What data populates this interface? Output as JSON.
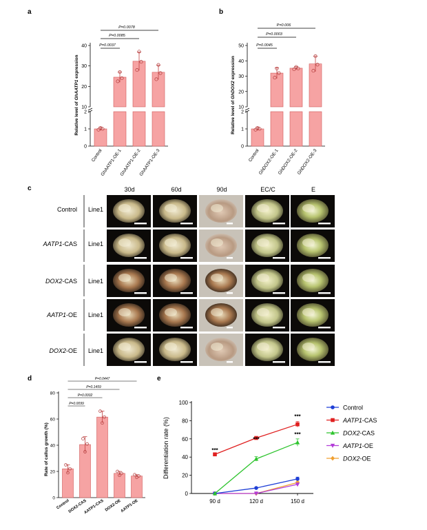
{
  "panel_labels": {
    "a": "a",
    "b": "b",
    "c": "c",
    "d": "d",
    "e": "e"
  },
  "panel_a": {
    "ylabel_prefix": "Relative level of ",
    "ylabel_gene": "GhAATP1",
    "ylabel_suffix": " expression",
    "yticks_upper": [
      "40",
      "30",
      "20",
      "10"
    ],
    "yticks_lower": [
      "2",
      "1",
      "0"
    ],
    "categories": [
      "Control",
      "GhAATP1-OE-1",
      "GhAATP1-OE-2",
      "GhAATP1-OE-3"
    ],
    "pvalues": [
      "P=0.0078",
      "P=0.0085",
      "P=0.0037"
    ]
  },
  "panel_b": {
    "ylabel_prefix": "Relative level of ",
    "ylabel_gene": "GhDOX2",
    "ylabel_suffix": " expression",
    "yticks_upper": [
      "50",
      "40",
      "30",
      "20",
      "10"
    ],
    "yticks_lower": [
      "2",
      "1",
      "0"
    ],
    "categories": [
      "Control",
      "GhDOX2-OE-1",
      "GhDOX2-OE-2",
      "GhDOX2-OE-3"
    ],
    "pvalues": [
      "P=0.006",
      "P=0.0003",
      "P=0.0045"
    ]
  },
  "panel_c": {
    "col_headers": [
      "30d",
      "60d",
      "90d",
      "EC/C",
      "E"
    ],
    "rows": [
      {
        "gene": "",
        "suffix": "Control",
        "line": "Line1"
      },
      {
        "gene": "AATP1",
        "suffix": "-CAS",
        "line": "Line1"
      },
      {
        "gene": "DOX2",
        "suffix": "-CAS",
        "line": "Line1"
      },
      {
        "gene": "AATP1",
        "suffix": "-OE",
        "line": "Line1"
      },
      {
        "gene": "DOX2",
        "suffix": "-OE",
        "line": "Line1"
      }
    ]
  },
  "panel_d": {
    "ylabel": "Rate of callus growth (%)",
    "yticks": [
      "80",
      "60",
      "40",
      "20",
      "0"
    ],
    "categories": [
      "Control",
      "DOX2-CAS",
      "AATP1-CAS",
      "DOX2-OE",
      "AATP1-OE"
    ],
    "pvalues": [
      "P=0.0447",
      "P=0.1459",
      "P=0.0002",
      "P=0.0099"
    ]
  },
  "panel_e": {
    "ylabel": "Differentiation rate (%)",
    "yticks": [
      "100",
      "80",
      "60",
      "40",
      "20",
      "0"
    ],
    "xticks": [
      "90 d",
      "120 d",
      "150 d"
    ],
    "sig_marks": [
      "***",
      "***",
      "***",
      "***"
    ],
    "legend": [
      {
        "gene": "",
        "suffix": "Control"
      },
      {
        "gene": "AATP1",
        "suffix": "-CAS"
      },
      {
        "gene": "DOX2",
        "suffix": "-CAS"
      },
      {
        "gene": "AATP1",
        "suffix": "-OE"
      },
      {
        "gene": "DOX2",
        "suffix": "-OE"
      }
    ]
  },
  "colors": {
    "bar_fill": "#f6a3a3",
    "bar_stroke": "#d05a5a",
    "control": "#1f3fd6",
    "aatp1_cas": "#e02020",
    "dox2_cas": "#2ec42e",
    "aatp1_oe": "#b23cd8",
    "dox2_oe": "#f0a030"
  },
  "chart_data": [
    {
      "type": "bar",
      "title": "",
      "ylabel": "Relative level of GhAATP1 expression",
      "categories": [
        "Control",
        "GhAATP1-OE-1",
        "GhAATP1-OE-2",
        "GhAATP1-OE-3"
      ],
      "values": [
        1.0,
        24.5,
        32.3,
        26.9
      ],
      "errors": [
        0.1,
        2.5,
        4.5,
        3.5
      ],
      "points": [
        [
          0.95,
          1.05,
          1.0
        ],
        [
          22.5,
          27.0,
          24.0
        ],
        [
          28.0,
          37.0,
          32.0
        ],
        [
          23.5,
          30.5,
          26.5
        ]
      ],
      "axis_break": [
        2,
        10
      ],
      "ylim": [
        0,
        40
      ]
    },
    {
      "type": "bar",
      "title": "",
      "ylabel": "Relative level of GhDOX2 expression",
      "categories": [
        "Control",
        "GhDOX2-OE-1",
        "GhDOX2-OE-2",
        "GhDOX2-OE-3"
      ],
      "values": [
        1.0,
        32.0,
        35.2,
        38.0
      ],
      "errors": [
        0.1,
        3.5,
        1.0,
        5.0
      ],
      "points": [
        [
          0.95,
          1.05,
          1.0
        ],
        [
          29.0,
          35.0,
          32.0
        ],
        [
          34.5,
          36.0,
          35.0
        ],
        [
          33.5,
          43.0,
          37.5
        ]
      ],
      "axis_break": [
        2,
        10
      ],
      "ylim": [
        0,
        50
      ]
    },
    {
      "type": "bar",
      "title": "",
      "ylabel": "Rate of callus growth (%)",
      "categories": [
        "Control",
        "DOX2-CAS",
        "AATP1-CAS",
        "DOX2-OE",
        "AATP1-OE"
      ],
      "values": [
        22.0,
        40.5,
        61.5,
        18.5,
        16.5
      ],
      "errors": [
        3.0,
        6.0,
        4.5,
        1.5,
        1.0
      ],
      "points": [
        [
          25.0,
          19.0,
          22.0
        ],
        [
          45.0,
          35.0,
          41.0
        ],
        [
          66.0,
          57.0,
          61.5
        ],
        [
          20.0,
          17.0,
          18.5
        ],
        [
          17.5,
          15.5,
          16.5
        ]
      ],
      "ylim": [
        0,
        80
      ]
    },
    {
      "type": "line",
      "title": "",
      "xlabel": "",
      "ylabel": "Differentiation rate (%)",
      "x": [
        "90 d",
        "120 d",
        "150 d"
      ],
      "ylim": [
        0,
        100
      ],
      "series": [
        {
          "name": "Control",
          "values": [
            0,
            6,
            16
          ]
        },
        {
          "name": "AATP1-CAS",
          "values": [
            43,
            61,
            76
          ]
        },
        {
          "name": "DOX2-CAS",
          "values": [
            0,
            38,
            56
          ]
        },
        {
          "name": "AATP1-OE",
          "values": [
            0,
            0,
            10
          ]
        },
        {
          "name": "DOX2-OE",
          "values": [
            0,
            0,
            12
          ]
        }
      ],
      "errors": [
        [
          0,
          0.5,
          2
        ],
        [
          1.5,
          1.5,
          3
        ],
        [
          0,
          2.5,
          4
        ],
        [
          0,
          0,
          1
        ],
        [
          0,
          0,
          1.5
        ]
      ],
      "legend_position": "right"
    }
  ]
}
